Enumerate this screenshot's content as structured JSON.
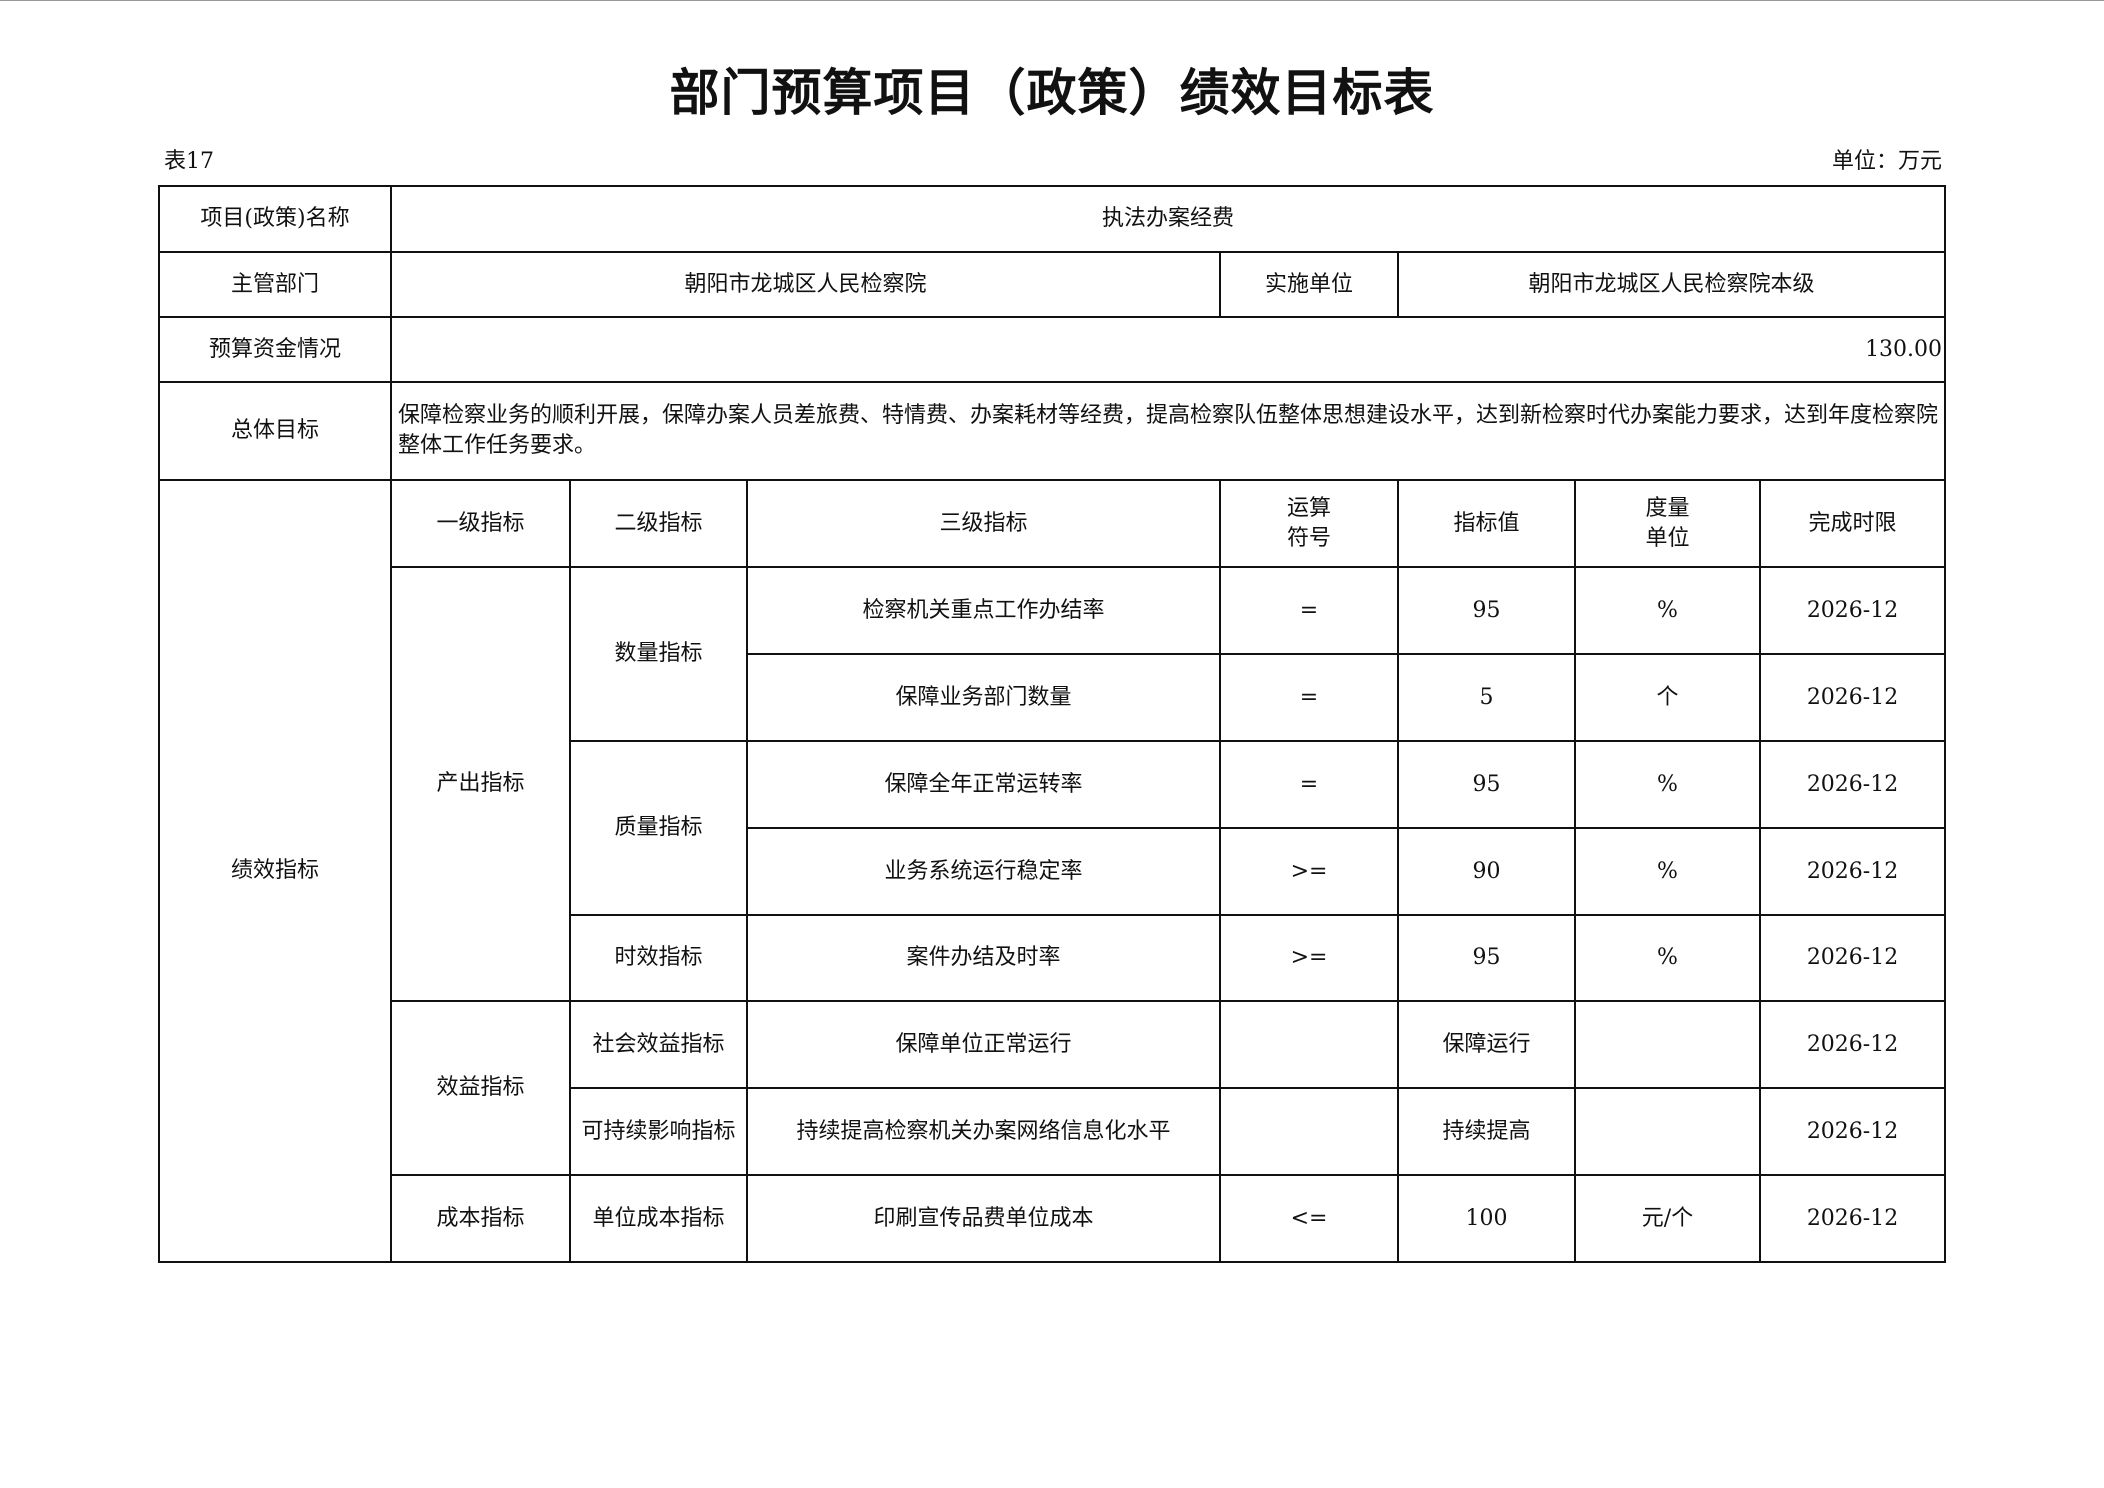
{
  "title": "部门预算项目（政策）绩效目标表",
  "table_no": "表17",
  "unit": "单位：万元",
  "info": {
    "project_label": "项目(政策)名称",
    "project_value": "执法办案经费",
    "dept_label": "主管部门",
    "dept_value": "朝阳市龙城区人民检察院",
    "impl_label": "实施单位",
    "impl_value": "朝阳市龙城区人民检察院本级",
    "budget_label": "预算资金情况",
    "budget_value": "130.00",
    "goal_label": "总体目标",
    "goal_value": "保障检察业务的顺利开展，保障办案人员差旅费、特情费、办案耗材等经费，提高检察队伍整体思想建设水平，达到新检察时代办案能力要求，达到年度检察院整体工作任务要求。"
  },
  "indicators": {
    "section_label": "绩效指标",
    "headers": [
      "一级指标",
      "二级指标",
      "三级指标",
      "运算\n符号",
      "指标值",
      "度量\n单位",
      "完成时限"
    ],
    "rows": [
      {
        "level1": "产出指标",
        "level1_span": 5,
        "level2": "数量指标",
        "level2_span": 2,
        "level3": "检察机关重点工作办结率",
        "op": "=",
        "value": "95",
        "unit": "%",
        "deadline": "2026-12"
      },
      {
        "level3": "保障业务部门数量",
        "op": "=",
        "value": "5",
        "unit": "个",
        "deadline": "2026-12"
      },
      {
        "level2": "质量指标",
        "level2_span": 2,
        "level3": "保障全年正常运转率",
        "op": "=",
        "value": "95",
        "unit": "%",
        "deadline": "2026-12"
      },
      {
        "level3": "业务系统运行稳定率",
        "op": ">=",
        "value": "90",
        "unit": "%",
        "deadline": "2026-12"
      },
      {
        "level2": "时效指标",
        "level2_span": 1,
        "level3": "案件办结及时率",
        "op": ">=",
        "value": "95",
        "unit": "%",
        "deadline": "2026-12"
      },
      {
        "level1": "效益指标",
        "level1_span": 2,
        "level2": "社会效益指标",
        "level2_span": 1,
        "level3": "保障单位正常运行",
        "op": "",
        "value": "保障运行",
        "unit": "",
        "deadline": "2026-12"
      },
      {
        "level2": "可持续影响指标",
        "level2_span": 1,
        "level3": "持续提高检察机关办案网络信息化水平",
        "op": "",
        "value": "持续提高",
        "unit": "",
        "deadline": "2026-12"
      },
      {
        "level1": "成本指标",
        "level1_span": 1,
        "level2": "单位成本指标",
        "level2_span": 1,
        "level3": "印刷宣传品费单位成本",
        "op": "<=",
        "value": "100",
        "unit": "元/个",
        "deadline": "2026-12"
      }
    ]
  }
}
